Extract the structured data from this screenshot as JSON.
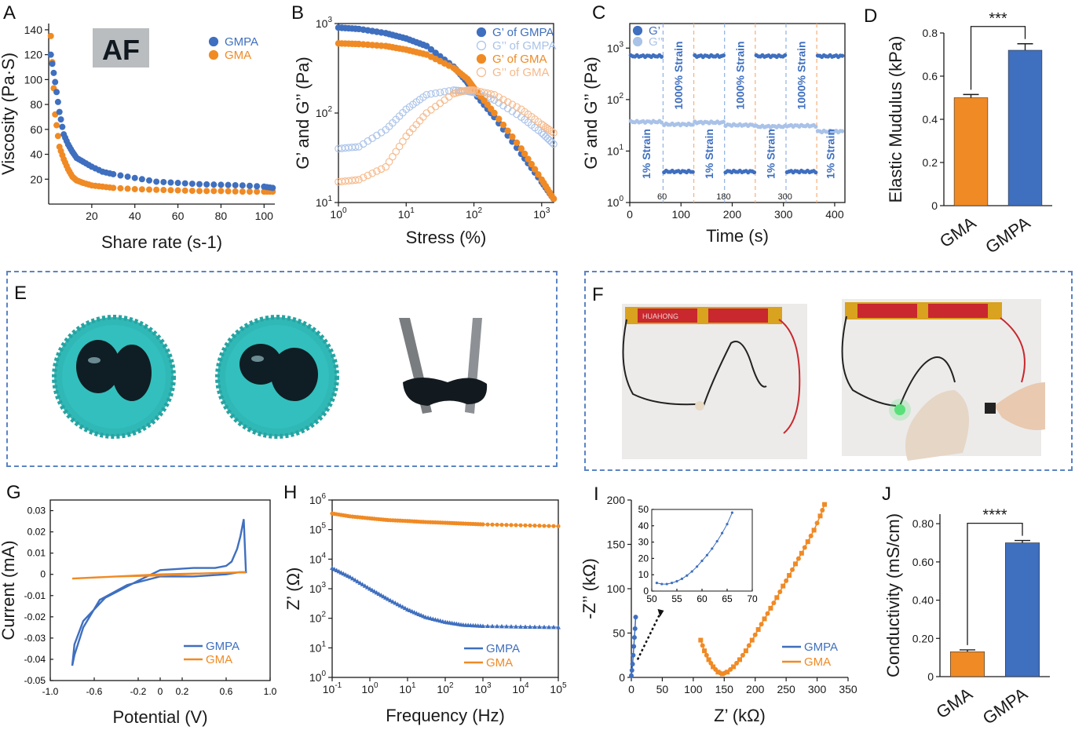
{
  "colors": {
    "gmpa": "#3f6fbf",
    "gmpa_light": "#a9c2e8",
    "gma": "#f08a24",
    "gma_light": "#f6b98a",
    "frame": "#5b84c4",
    "teal": "#2fb8b6"
  },
  "panels": {
    "A": {
      "letter": "A",
      "inset_text": "AF"
    },
    "B": {
      "letter": "B"
    },
    "C": {
      "letter": "C",
      "annotations": [
        "1% Strain",
        "1000% Strain",
        "1% Strain",
        "1000% Strain",
        "1% Strain",
        "1000% Strain",
        "1% Strain"
      ],
      "markers": [
        "60",
        "180",
        "300"
      ]
    },
    "D": {
      "letter": "D",
      "sig": "***"
    },
    "E": {
      "letter": "E"
    },
    "F": {
      "letter": "F",
      "brand": "HUAHONG"
    },
    "G": {
      "letter": "G"
    },
    "H": {
      "letter": "H"
    },
    "I": {
      "letter": "I"
    },
    "J": {
      "letter": "J",
      "sig": "****"
    }
  },
  "chart_data": [
    {
      "id": "A",
      "type": "scatter",
      "xlabel": "Share rate (s-1)",
      "ylabel": "Viscosity (Pa·S)",
      "xlim": [
        0,
        105
      ],
      "ylim": [
        0,
        145
      ],
      "xticks": [
        "20",
        "40",
        "60",
        "80",
        "100"
      ],
      "yticks": [
        "20",
        "40",
        "60",
        "80",
        "100",
        "120",
        "140"
      ],
      "series": [
        {
          "name": "GMPA",
          "x": [
            1,
            3,
            5,
            7,
            9,
            11,
            13,
            16,
            20,
            25,
            30,
            40,
            50,
            60,
            70,
            80,
            90,
            100,
            104
          ],
          "y": [
            120,
            98,
            74,
            56,
            48,
            42,
            37,
            34,
            30,
            26,
            24,
            21,
            18,
            17,
            16,
            15.5,
            15,
            14,
            13
          ]
        },
        {
          "name": "GMA",
          "x": [
            1,
            3,
            5,
            7,
            9,
            11,
            13,
            16,
            20,
            25,
            30,
            40,
            50,
            60,
            70,
            80,
            90,
            100,
            104
          ],
          "y": [
            135,
            72,
            46,
            36,
            28,
            22,
            19,
            17,
            15,
            14,
            13,
            12,
            11.5,
            11,
            10.5,
            10.5,
            10,
            10,
            10
          ]
        }
      ]
    },
    {
      "id": "B",
      "type": "scatter",
      "xlabel": "Stress (%)",
      "ylabel": "G’ and G’’ (Pa)",
      "xscale": "log",
      "yscale": "log",
      "xlim": [
        1,
        1500
      ],
      "ylim": [
        10,
        1000
      ],
      "xticks": [
        "10^0",
        "10^1",
        "10^2",
        "10^3"
      ],
      "yticks": [
        "10^1",
        "10^2",
        "10^3"
      ],
      "series": [
        {
          "name": "G’ of GMPA",
          "x": [
            1,
            2,
            5,
            10,
            20,
            50,
            80,
            100,
            200,
            500,
            1000,
            1500
          ],
          "y": [
            900,
            870,
            780,
            680,
            560,
            330,
            220,
            170,
            90,
            35,
            17,
            11
          ]
        },
        {
          "name": "G’’ of GMPA",
          "x": [
            1,
            2,
            5,
            10,
            20,
            50,
            80,
            100,
            200,
            500,
            1000,
            1500
          ],
          "y": [
            40,
            42,
            65,
            110,
            160,
            180,
            175,
            170,
            140,
            90,
            60,
            45
          ]
        },
        {
          "name": "G’ of GMA",
          "x": [
            1,
            2,
            5,
            10,
            20,
            50,
            80,
            100,
            200,
            500,
            1000,
            1500
          ],
          "y": [
            600,
            590,
            560,
            510,
            450,
            320,
            240,
            190,
            100,
            40,
            18,
            11
          ]
        },
        {
          "name": "G’’ of GMA",
          "x": [
            1,
            2,
            5,
            10,
            20,
            50,
            80,
            100,
            200,
            500,
            1000,
            1500
          ],
          "y": [
            17,
            18,
            25,
            55,
            100,
            165,
            180,
            180,
            160,
            110,
            75,
            60
          ]
        }
      ]
    },
    {
      "id": "C",
      "type": "scatter",
      "xlabel": "Time (s)",
      "ylabel": "G’ and G’’ (Pa)",
      "yscale": "log",
      "xlim": [
        0,
        420
      ],
      "ylim": [
        1,
        3000
      ],
      "xticks": [
        "0",
        "100",
        "200",
        "300",
        "400"
      ],
      "yticks": [
        "10^0",
        "10^1",
        "10^2",
        "10^3"
      ],
      "series": [
        {
          "name": "G’",
          "segments": [
            [
              0,
              65,
              700
            ],
            [
              65,
              125,
              4
            ],
            [
              125,
              185,
              700
            ],
            [
              185,
              245,
              4
            ],
            [
              245,
              305,
              700
            ],
            [
              305,
              365,
              4
            ],
            [
              365,
              420,
              700
            ]
          ]
        },
        {
          "name": "G’’",
          "segments": [
            [
              0,
              65,
              37
            ],
            [
              65,
              125,
              33
            ],
            [
              125,
              185,
              36
            ],
            [
              185,
              245,
              32
            ],
            [
              245,
              305,
              30
            ],
            [
              305,
              365,
              31
            ],
            [
              365,
              420,
              24
            ]
          ]
        }
      ]
    },
    {
      "id": "D",
      "type": "bar",
      "categories": [
        "GMA",
        "GMPA"
      ],
      "values": [
        0.5,
        0.72
      ],
      "errors": [
        0.015,
        0.03
      ],
      "ylabel": "Elastic Mudulus (kPa)",
      "ylim": [
        0,
        0.8
      ],
      "yticks": [
        "0",
        "0.2",
        "0.4",
        "0.6",
        "0.8"
      ]
    },
    {
      "id": "G",
      "type": "line",
      "xlabel": "Potential (V)",
      "ylabel": "Current (mA)",
      "xlim": [
        -1.0,
        1.0
      ],
      "ylim": [
        -0.05,
        0.035
      ],
      "xticks": [
        "-1.0",
        "-0.6",
        "-0.2",
        "0",
        "0.2",
        "0.6",
        "1.0"
      ],
      "yticks": [
        "-0.05",
        "-0.04",
        "-0.03",
        "-0.02",
        "-0.01",
        "0",
        "0.01",
        "0.02",
        "0.03"
      ],
      "series": [
        {
          "name": "GMPA",
          "x": [
            -0.8,
            -0.78,
            -0.7,
            -0.5,
            -0.2,
            0.0,
            0.3,
            0.5,
            0.6,
            0.65,
            0.7,
            0.73,
            0.76,
            0.78,
            0.72,
            0.6,
            0.3,
            0.0,
            -0.3,
            -0.55,
            -0.7,
            -0.78,
            -0.8
          ],
          "y": [
            -0.043,
            -0.033,
            -0.022,
            -0.011,
            -0.003,
            0.002,
            0.003,
            0.003,
            0.004,
            0.006,
            0.012,
            0.018,
            0.026,
            0.001,
            0.001,
            0.0,
            -0.001,
            -0.001,
            -0.005,
            -0.012,
            -0.025,
            -0.038,
            -0.043
          ]
        },
        {
          "name": "GMA",
          "x": [
            -0.8,
            -0.4,
            0.0,
            0.4,
            0.78,
            0.4,
            0.0,
            -0.4,
            -0.8
          ],
          "y": [
            -0.002,
            -0.001,
            0.0,
            0.0005,
            0.001,
            0.0005,
            -0.0005,
            -0.001,
            -0.002
          ]
        }
      ]
    },
    {
      "id": "H",
      "type": "scatter",
      "xlabel": "Frequency (Hz)",
      "ylabel": "Z’ (Ω)",
      "xscale": "log",
      "yscale": "log",
      "xlim": [
        0.1,
        100000
      ],
      "ylim": [
        1,
        1000000
      ],
      "xticks": [
        "10^-1",
        "10^0",
        "10^1",
        "10^2",
        "10^3",
        "10^4",
        "10^5"
      ],
      "yticks": [
        "10^0",
        "10^1",
        "10^2",
        "10^3",
        "10^4",
        "10^5",
        "10^6"
      ],
      "series": [
        {
          "name": "GMPA",
          "x": [
            0.1,
            0.3,
            1,
            3,
            10,
            30,
            100,
            300,
            1000,
            10000,
            100000
          ],
          "y": [
            5000,
            2500,
            1000,
            450,
            200,
            110,
            75,
            60,
            55,
            52,
            50
          ]
        },
        {
          "name": "GMA",
          "x": [
            0.1,
            0.3,
            1,
            3,
            10,
            30,
            100,
            300,
            1000,
            10000,
            100000
          ],
          "y": [
            350000,
            280000,
            240000,
            210000,
            195000,
            180000,
            170000,
            160000,
            150000,
            140000,
            130000
          ]
        }
      ]
    },
    {
      "id": "I",
      "type": "scatter",
      "xlabel": "Z’ (kΩ)",
      "ylabel": "-Z’’ (kΩ)",
      "xlim": [
        0,
        350
      ],
      "ylim": [
        0,
        200
      ],
      "xticks": [
        "0",
        "50",
        "100",
        "150",
        "200",
        "250",
        "300",
        "350"
      ],
      "yticks": [
        "0",
        "50",
        "100",
        "150",
        "200"
      ],
      "series": [
        {
          "name": "GMPA",
          "x": [
            0,
            1,
            2,
            3,
            4,
            5,
            6,
            7
          ],
          "y": [
            2,
            8,
            15,
            25,
            35,
            45,
            55,
            68
          ]
        },
        {
          "name": "GMA",
          "x": [
            112,
            118,
            125,
            132,
            140,
            147,
            155,
            165,
            175,
            185,
            195,
            205,
            215,
            225,
            235,
            245,
            255,
            265,
            275,
            285,
            295,
            305,
            312
          ],
          "y": [
            42,
            30,
            20,
            12,
            6,
            4,
            6,
            12,
            20,
            30,
            42,
            54,
            66,
            78,
            90,
            103,
            115,
            128,
            140,
            153,
            166,
            182,
            195
          ]
        }
      ],
      "inset": {
        "xlim": [
          50,
          70
        ],
        "ylim": [
          0,
          50
        ],
        "xticks": [
          "50",
          "55",
          "60",
          "65",
          "70"
        ],
        "yticks": [
          "0",
          "5",
          "10",
          "15",
          "20",
          "25",
          "30",
          "35",
          "40",
          "45",
          "50"
        ],
        "x": [
          51,
          52,
          53,
          54,
          55,
          56,
          57,
          58,
          59,
          60,
          61,
          62,
          63,
          64,
          65,
          66
        ],
        "y": [
          5,
          4.3,
          4.3,
          5,
          6,
          7.5,
          9.5,
          12,
          15,
          18.5,
          22,
          26,
          30.5,
          35.5,
          41,
          48
        ]
      }
    },
    {
      "id": "J",
      "type": "bar",
      "categories": [
        "GMA",
        "GMPA"
      ],
      "values": [
        0.13,
        0.7
      ],
      "errors": [
        0.01,
        0.012
      ],
      "ylabel": "Conductivity (mS/cm)",
      "ylim": [
        0,
        0.85
      ],
      "yticks": [
        "0",
        "0.20",
        "0.40",
        "0.60",
        "0.80"
      ]
    }
  ]
}
